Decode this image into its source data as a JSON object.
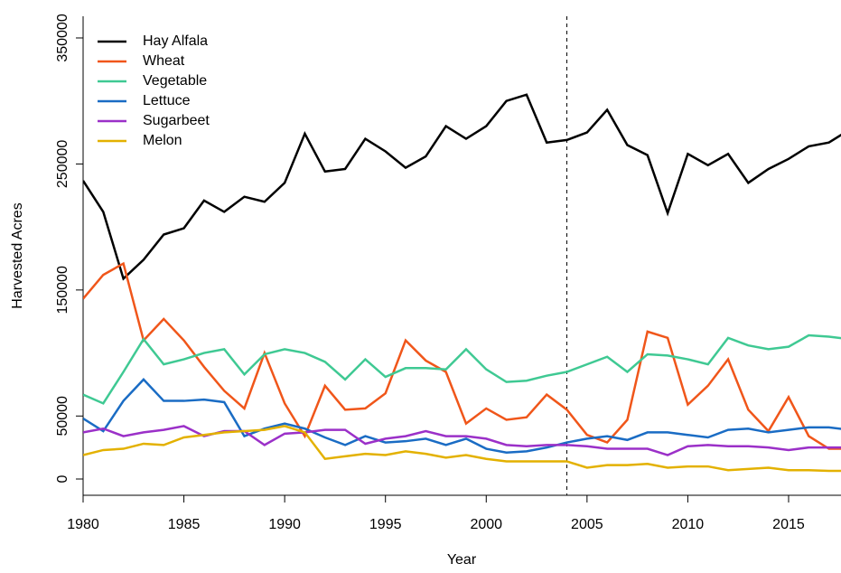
{
  "chart_data": {
    "type": "line",
    "x_label": "Year",
    "y_label": "Harvested Acres",
    "x": [
      1980,
      1981,
      1982,
      1983,
      1984,
      1985,
      1986,
      1987,
      1988,
      1989,
      1990,
      1991,
      1992,
      1993,
      1994,
      1995,
      1996,
      1997,
      1998,
      1999,
      2000,
      2001,
      2002,
      2003,
      2004,
      2005,
      2006,
      2007,
      2008,
      2009,
      2010,
      2011,
      2012,
      2013,
      2014,
      2015,
      2016,
      2017,
      2018
    ],
    "series": [
      {
        "name": "Hay Alfala",
        "color": "#000000",
        "values": [
          236700,
          212000,
          159000,
          174000,
          194000,
          199000,
          221000,
          212000,
          224000,
          220000,
          235000,
          274000,
          244000,
          246000,
          270000,
          260000,
          247000,
          256000,
          280000,
          270000,
          280000,
          300000,
          305000,
          267000,
          269000,
          275000,
          293000,
          265000,
          257000,
          211000,
          258000,
          249000,
          258000,
          235000,
          246000,
          254000,
          264000,
          267000,
          277000
        ]
      },
      {
        "name": "Wheat",
        "color": "#f0561a",
        "values": [
          143000,
          162000,
          171000,
          110000,
          127000,
          110000,
          89000,
          70000,
          56000,
          100000,
          60000,
          34000,
          74000,
          55000,
          56000,
          68000,
          110000,
          94000,
          85000,
          44000,
          56000,
          47000,
          49000,
          67000,
          55000,
          35000,
          29000,
          47000,
          117000,
          112000,
          59000,
          74000,
          95000,
          55000,
          38000,
          65000,
          34000,
          24000,
          24000
        ]
      },
      {
        "name": "Vegetable",
        "color": "#3fc993",
        "values": [
          67000,
          60000,
          85000,
          111000,
          91000,
          95000,
          100000,
          103000,
          83000,
          99000,
          103000,
          100000,
          93000,
          79000,
          95000,
          81000,
          88000,
          88000,
          87000,
          103000,
          87000,
          77000,
          78000,
          82000,
          85000,
          91000,
          97000,
          85000,
          99000,
          98000,
          95000,
          91000,
          112000,
          106000,
          103000,
          105000,
          114000,
          113000,
          111000
        ]
      },
      {
        "name": "Lettuce",
        "color": "#1a6cc4",
        "values": [
          48000,
          38000,
          62000,
          79000,
          62000,
          62000,
          63000,
          61000,
          34000,
          40000,
          44000,
          40000,
          33000,
          27000,
          34000,
          29000,
          30000,
          32000,
          27000,
          32000,
          24000,
          21000,
          22000,
          25000,
          29000,
          32000,
          34000,
          31000,
          37000,
          37000,
          35000,
          33000,
          39000,
          40000,
          37000,
          39000,
          41000,
          41000,
          39000
        ]
      },
      {
        "name": "Sugarbeet",
        "color": "#9b30c8",
        "values": [
          37000,
          40000,
          34000,
          37000,
          39000,
          42000,
          34000,
          38000,
          38000,
          27000,
          36000,
          37000,
          39000,
          39000,
          28000,
          32000,
          34000,
          38000,
          34000,
          34000,
          32000,
          27000,
          26000,
          27000,
          27000,
          26000,
          24000,
          24000,
          24000,
          19000,
          26000,
          27000,
          26000,
          26000,
          25000,
          23000,
          25000,
          25000,
          25000
        ]
      },
      {
        "name": "Melon",
        "color": "#e3b100",
        "values": [
          19000,
          23000,
          24000,
          28000,
          27000,
          33000,
          35000,
          37000,
          38000,
          39000,
          42000,
          37000,
          16000,
          18000,
          20000,
          19000,
          22000,
          20000,
          17000,
          19000,
          16000,
          14000,
          14000,
          14000,
          14000,
          9000,
          11000,
          11000,
          12000,
          9000,
          10000,
          10000,
          7000,
          8000,
          9000,
          7000,
          7000,
          6500,
          6500
        ]
      }
    ],
    "xlim": [
      1980,
      2017.6
    ],
    "xticks": [
      1980,
      1985,
      1990,
      1995,
      2000,
      2005,
      2010,
      2015
    ],
    "ylim": [
      -12900,
      367200
    ],
    "yticks": [
      0,
      50000,
      150000,
      250000,
      350000
    ],
    "vline": 2004,
    "legend": "topleft"
  }
}
